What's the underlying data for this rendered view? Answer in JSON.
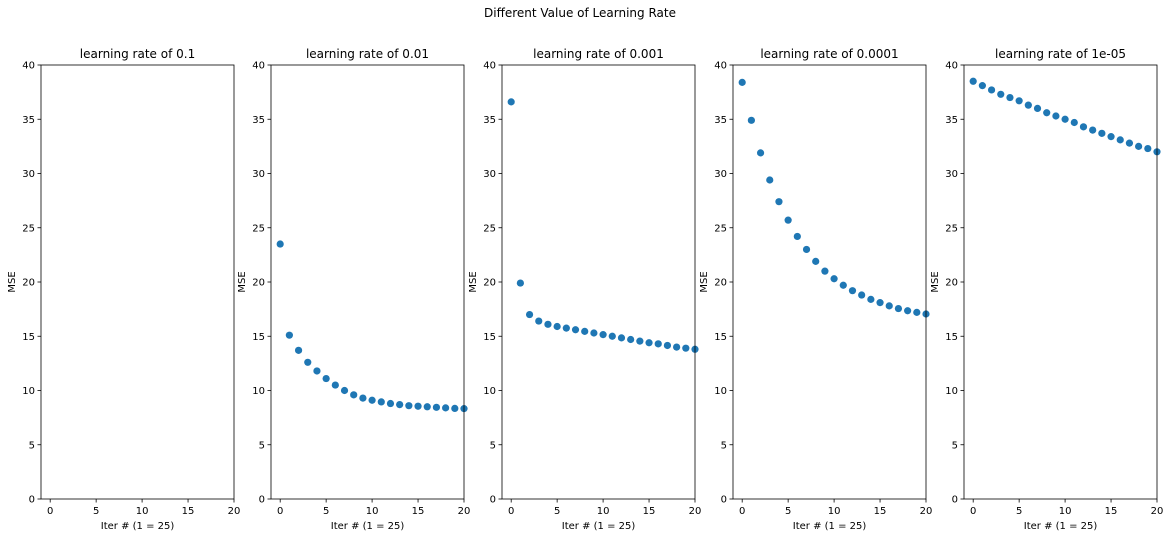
{
  "figure": {
    "title": "Different Value of Learning Rate"
  },
  "colors": {
    "marker": "#1f77b4"
  },
  "chart_data": [
    {
      "type": "scatter",
      "title": "learning rate of 0.1",
      "xlabel": "Iter # (1 = 25)",
      "ylabel": "MSE",
      "xlim": [
        -1,
        20
      ],
      "ylim": [
        0,
        40
      ],
      "xticks": [
        "0",
        "5",
        "10",
        "15",
        "20"
      ],
      "yticks": [
        "0",
        "5",
        "10",
        "15",
        "20",
        "25",
        "30",
        "35",
        "40"
      ],
      "grid": false,
      "x": [],
      "y": []
    },
    {
      "type": "scatter",
      "title": "learning rate of 0.01",
      "xlabel": "Iter # (1 = 25)",
      "ylabel": "MSE",
      "xlim": [
        -1,
        20
      ],
      "ylim": [
        0,
        40
      ],
      "xticks": [
        "0",
        "5",
        "10",
        "15",
        "20"
      ],
      "yticks": [
        "0",
        "5",
        "10",
        "15",
        "20",
        "25",
        "30",
        "35",
        "40"
      ],
      "grid": false,
      "x": [
        0,
        1,
        2,
        3,
        4,
        5,
        6,
        7,
        8,
        9,
        10,
        11,
        12,
        13,
        14,
        15,
        16,
        17,
        18,
        19,
        20
      ],
      "y": [
        23.5,
        15.1,
        13.7,
        12.6,
        11.8,
        11.1,
        10.5,
        10.0,
        9.6,
        9.3,
        9.1,
        8.95,
        8.8,
        8.7,
        8.6,
        8.55,
        8.5,
        8.45,
        8.4,
        8.35,
        8.33
      ]
    },
    {
      "type": "scatter",
      "title": "learning rate of 0.001",
      "xlabel": "Iter # (1 = 25)",
      "ylabel": "MSE",
      "xlim": [
        -1,
        20
      ],
      "ylim": [
        0,
        40
      ],
      "xticks": [
        "0",
        "5",
        "10",
        "15",
        "20"
      ],
      "yticks": [
        "0",
        "5",
        "10",
        "15",
        "20",
        "25",
        "30",
        "35",
        "40"
      ],
      "grid": false,
      "x": [
        0,
        1,
        2,
        3,
        4,
        5,
        6,
        7,
        8,
        9,
        10,
        11,
        12,
        13,
        14,
        15,
        16,
        17,
        18,
        19,
        20
      ],
      "y": [
        36.6,
        19.9,
        17.0,
        16.4,
        16.1,
        15.9,
        15.75,
        15.6,
        15.45,
        15.3,
        15.15,
        15.0,
        14.85,
        14.7,
        14.55,
        14.4,
        14.3,
        14.15,
        14.0,
        13.9,
        13.8
      ]
    },
    {
      "type": "scatter",
      "title": "learning rate of 0.0001",
      "xlabel": "Iter # (1 = 25)",
      "ylabel": "MSE",
      "xlim": [
        -1,
        20
      ],
      "ylim": [
        0,
        40
      ],
      "xticks": [
        "0",
        "5",
        "10",
        "15",
        "20"
      ],
      "yticks": [
        "0",
        "5",
        "10",
        "15",
        "20",
        "25",
        "30",
        "35",
        "40"
      ],
      "grid": false,
      "x": [
        0,
        1,
        2,
        3,
        4,
        5,
        6,
        7,
        8,
        9,
        10,
        11,
        12,
        13,
        14,
        15,
        16,
        17,
        18,
        19,
        20
      ],
      "y": [
        38.4,
        34.9,
        31.9,
        29.4,
        27.4,
        25.7,
        24.2,
        23.0,
        21.9,
        21.0,
        20.3,
        19.7,
        19.2,
        18.8,
        18.4,
        18.1,
        17.8,
        17.55,
        17.35,
        17.2,
        17.05
      ]
    },
    {
      "type": "scatter",
      "title": "learning rate of 1e-05",
      "xlabel": "Iter # (1 = 25)",
      "ylabel": "MSE",
      "xlim": [
        -1,
        20
      ],
      "ylim": [
        0,
        40
      ],
      "xticks": [
        "0",
        "5",
        "10",
        "15",
        "20"
      ],
      "yticks": [
        "0",
        "5",
        "10",
        "15",
        "20",
        "25",
        "30",
        "35",
        "40"
      ],
      "grid": false,
      "x": [
        0,
        1,
        2,
        3,
        4,
        5,
        6,
        7,
        8,
        9,
        10,
        11,
        12,
        13,
        14,
        15,
        16,
        17,
        18,
        19,
        20
      ],
      "y": [
        38.5,
        38.1,
        37.7,
        37.3,
        37.0,
        36.7,
        36.3,
        36.0,
        35.6,
        35.3,
        35.0,
        34.7,
        34.3,
        34.0,
        33.7,
        33.4,
        33.1,
        32.8,
        32.5,
        32.3,
        32.0
      ]
    }
  ]
}
